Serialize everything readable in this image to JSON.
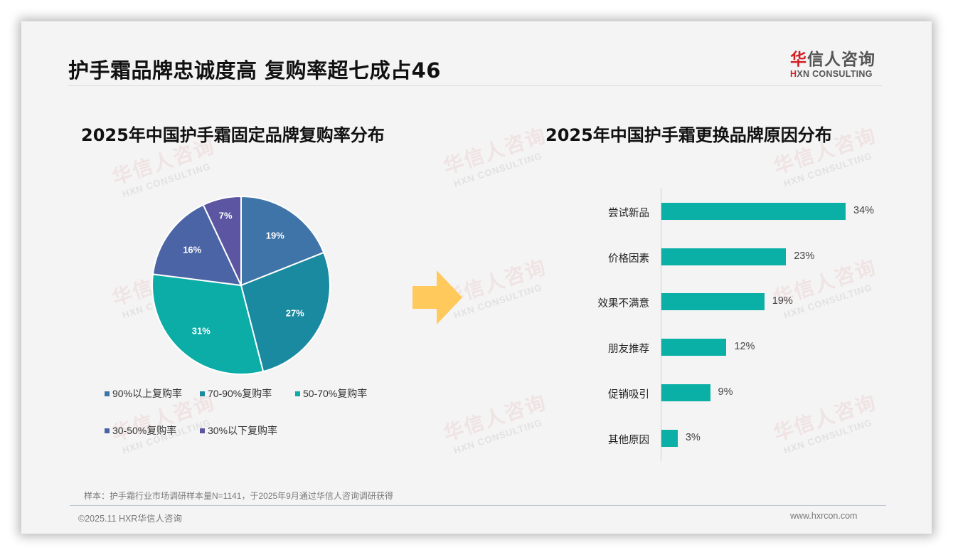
{
  "page": {
    "title": "护手霜品牌忠诚度高 复购率超七成占46"
  },
  "logo": {
    "cn_highlight": "华",
    "cn_rest": "信人咨询",
    "en_highlight": "H",
    "en_rest": "XN CONSULTING"
  },
  "watermark": {
    "cn": "华信人咨询",
    "en": "HXN CONSULTING"
  },
  "left_chart": {
    "title": "2025年中国护手霜固定品牌复购率分布"
  },
  "right_chart": {
    "title": "2025年中国护手霜更换品牌原因分布"
  },
  "chart_data": [
    {
      "type": "pie",
      "title": "2025年中国护手霜固定品牌复购率分布",
      "categories": [
        "90%以上复购率",
        "70-90%复购率",
        "50-70%复购率",
        "30-50%复购率",
        "30%以下复购率"
      ],
      "values": [
        19,
        27,
        31,
        16,
        7
      ],
      "labels": [
        "19%",
        "27%",
        "31%",
        "16%",
        "7%"
      ],
      "colors": [
        "#3e74a8",
        "#1a8aa0",
        "#0bada6",
        "#4a64a6",
        "#5c56a2"
      ],
      "legend_position": "bottom",
      "start_angle": "top, clockwise"
    },
    {
      "type": "bar",
      "orientation": "horizontal",
      "title": "2025年中国护手霜更换品牌原因分布",
      "categories": [
        "尝试新品",
        "价格因素",
        "效果不满意",
        "朋友推荐",
        "促销吸引",
        "其他原因"
      ],
      "values": [
        34,
        23,
        19,
        12,
        9,
        3
      ],
      "labels": [
        "34%",
        "23%",
        "19%",
        "12%",
        "9%",
        "3%"
      ],
      "color": "#0aafa6",
      "grid": false,
      "xlim": [
        0,
        34
      ]
    }
  ],
  "arrow": {
    "color": "#ffc95c",
    "icon": "right-arrow"
  },
  "footer": {
    "source": "样本：护手霜行业市场调研样本量N=1141，于2025年9月通过华信人咨询调研获得",
    "copyright": "©2025.11 HXR华信人咨询",
    "website": "www.hxrcon.com"
  }
}
